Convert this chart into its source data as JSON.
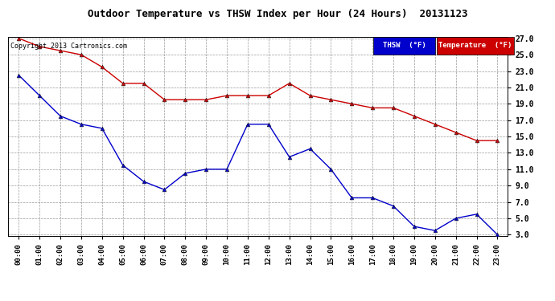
{
  "title": "Outdoor Temperature vs THSW Index per Hour (24 Hours)  20131123",
  "copyright": "Copyright 2013 Cartronics.com",
  "hours": [
    "00:00",
    "01:00",
    "02:00",
    "03:00",
    "04:00",
    "05:00",
    "06:00",
    "07:00",
    "08:00",
    "09:00",
    "10:00",
    "11:00",
    "12:00",
    "13:00",
    "14:00",
    "15:00",
    "16:00",
    "17:00",
    "18:00",
    "19:00",
    "20:00",
    "21:00",
    "22:00",
    "23:00"
  ],
  "temperature": [
    27.0,
    26.0,
    25.5,
    25.0,
    23.5,
    21.5,
    21.5,
    19.5,
    19.5,
    19.5,
    20.0,
    20.0,
    20.0,
    21.5,
    20.0,
    19.5,
    19.0,
    18.5,
    18.5,
    17.5,
    16.5,
    15.5,
    14.5,
    14.5
  ],
  "thsw": [
    22.5,
    20.0,
    17.5,
    16.5,
    16.0,
    11.5,
    9.5,
    8.5,
    10.5,
    11.0,
    11.0,
    16.5,
    16.5,
    12.5,
    13.5,
    11.0,
    7.5,
    7.5,
    6.5,
    4.0,
    3.5,
    5.0,
    5.5,
    3.0
  ],
  "temp_color": "#cc0000",
  "thsw_color": "#0000cc",
  "bg_color": "#ffffff",
  "grid_color": "#999999",
  "ylim_min": 3.0,
  "ylim_max": 27.0,
  "yticks": [
    3.0,
    5.0,
    7.0,
    9.0,
    11.0,
    13.0,
    15.0,
    17.0,
    19.0,
    21.0,
    23.0,
    25.0,
    27.0
  ],
  "legend_thsw_bg": "#0000cc",
  "legend_temp_bg": "#cc0000",
  "legend_thsw_text": "THSW  (°F)",
  "legend_temp_text": "Temperature  (°F)"
}
